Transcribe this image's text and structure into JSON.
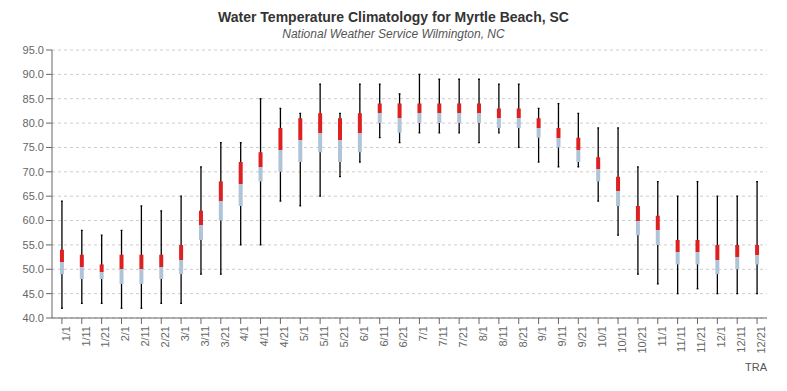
{
  "chart_data": {
    "type": "box",
    "title": "Water Temperature Climatology for Myrtle Beach, SC",
    "subtitle": "National Weather Service Wilmington, NC",
    "annotations": [
      "TRA"
    ],
    "categories": [
      "1/1",
      "1/11",
      "1/21",
      "2/1",
      "2/11",
      "2/21",
      "3/1",
      "3/11",
      "3/21",
      "4/1",
      "4/11",
      "4/21",
      "5/1",
      "5/11",
      "5/21",
      "6/1",
      "6/11",
      "6/21",
      "7/1",
      "7/11",
      "7/21",
      "8/1",
      "8/11",
      "8/21",
      "9/1",
      "9/11",
      "9/21",
      "10/1",
      "10/11",
      "10/21",
      "11/1",
      "11/11",
      "11/21",
      "12/1",
      "12/11",
      "12/21"
    ],
    "avg_high": [
      54,
      53,
      51,
      53,
      53,
      53,
      55,
      62,
      68,
      72,
      74,
      79,
      81,
      82,
      81,
      82,
      84,
      84,
      84,
      84,
      84,
      84,
      83,
      83,
      81,
      79,
      77,
      73,
      69,
      63,
      61,
      56,
      56,
      55,
      55,
      55
    ],
    "avg_low": [
      49,
      48,
      48,
      47,
      47,
      48,
      49,
      56,
      60,
      63,
      68,
      70,
      72,
      74,
      72,
      74,
      80,
      78,
      80,
      80,
      80,
      80,
      79,
      79,
      77,
      75,
      72,
      68,
      63,
      57,
      55,
      51,
      51,
      49,
      50,
      51
    ],
    "record_high": [
      64,
      58,
      57,
      58,
      63,
      62,
      65,
      71,
      76,
      76,
      85,
      83,
      82,
      88,
      82,
      88,
      88,
      86,
      90,
      89,
      89,
      89,
      88,
      88,
      83,
      84,
      82,
      79,
      79,
      71,
      68,
      65,
      68,
      65,
      65,
      68
    ],
    "record_low": [
      42,
      43,
      43,
      42,
      42,
      43,
      43,
      49,
      49,
      55,
      55,
      64,
      63,
      65,
      69,
      72,
      77,
      76,
      78,
      78,
      78,
      76,
      78,
      75,
      72,
      71,
      71,
      64,
      57,
      49,
      47,
      45,
      46,
      45,
      45,
      45
    ],
    "colors": [
      "#b0c4d8",
      "#dd2020",
      "black"
    ],
    "ylim": [
      40.0,
      95.0
    ],
    "yticks": [
      {
        "value": 40,
        "label": "40.0"
      },
      {
        "value": 45,
        "label": "45.0"
      },
      {
        "value": 50,
        "label": "50.0"
      },
      {
        "value": 55,
        "label": "55.0"
      },
      {
        "value": 60,
        "label": "60.0"
      },
      {
        "value": 65,
        "label": "65.0"
      },
      {
        "value": 70,
        "label": "70.0"
      },
      {
        "value": 75,
        "label": "75.0"
      },
      {
        "value": 80,
        "label": "80.0"
      },
      {
        "value": 85,
        "label": "85.0"
      },
      {
        "value": 90,
        "label": "90.0"
      },
      {
        "value": 95,
        "label": "95.0"
      }
    ],
    "grid": true
  }
}
